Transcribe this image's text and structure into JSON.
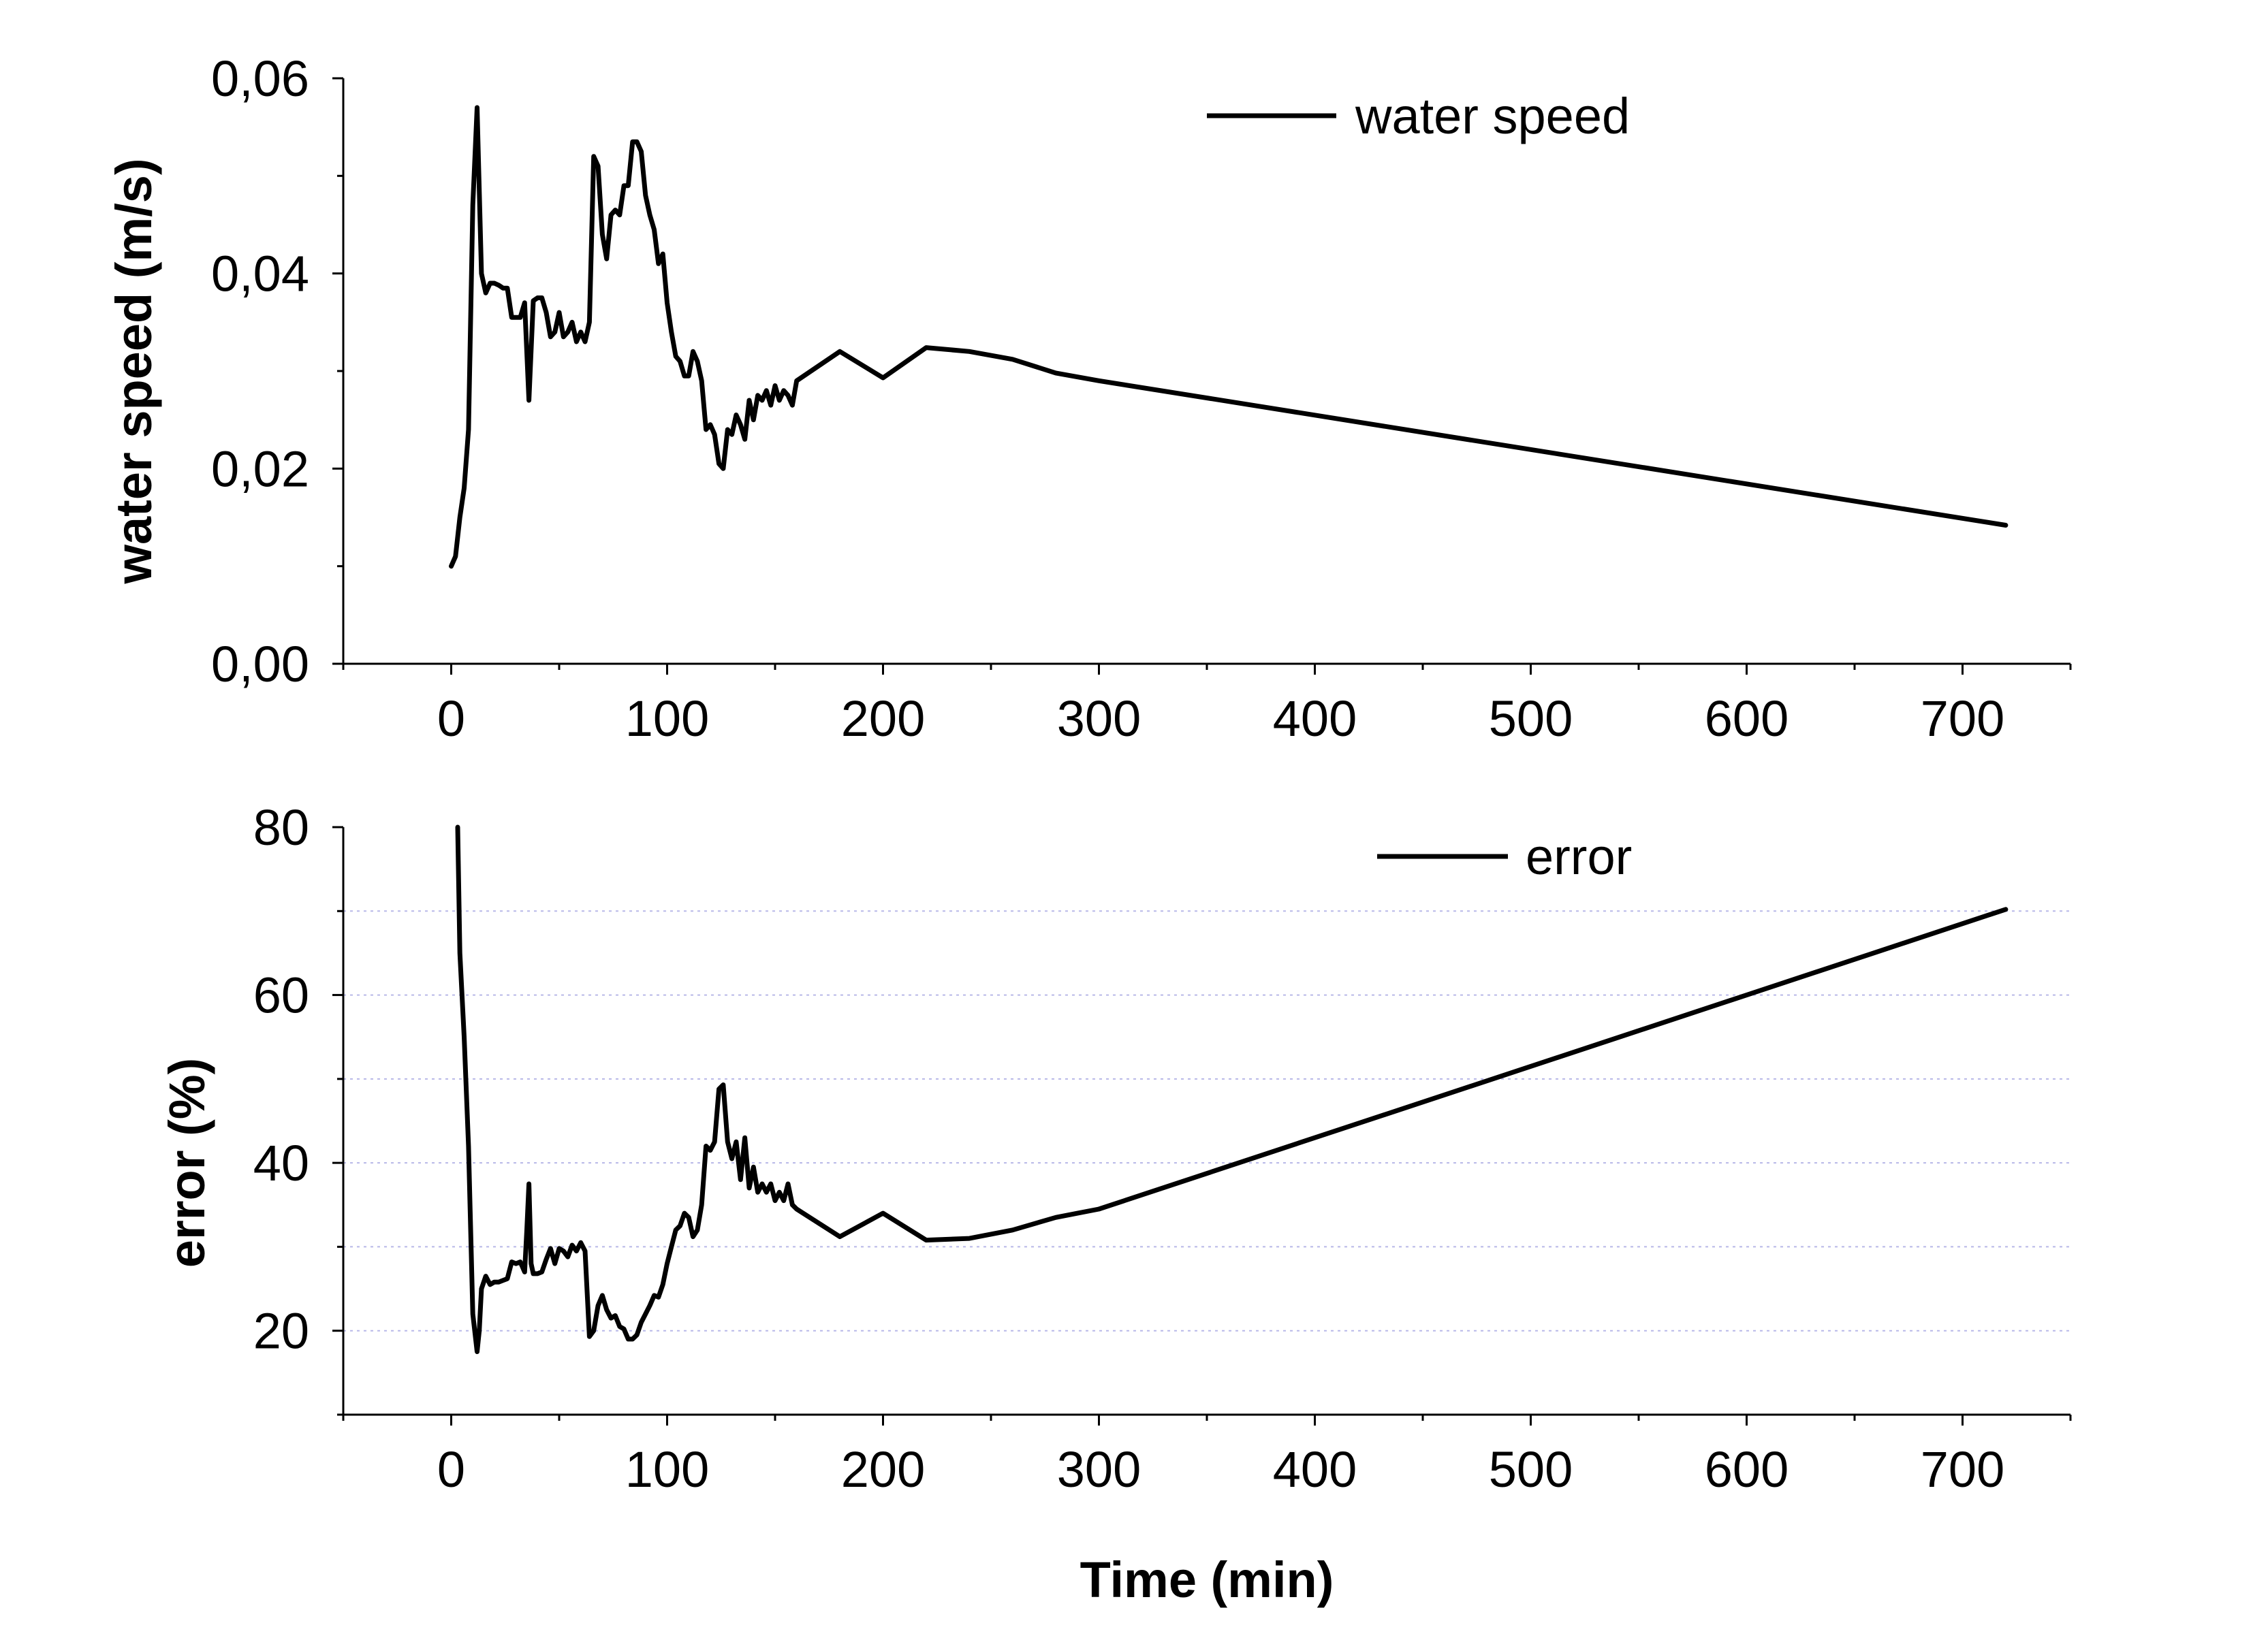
{
  "chart_data": [
    {
      "type": "line",
      "title": "",
      "xlabel": "",
      "ylabel": "water speed (m/s)",
      "xlim": [
        -50,
        750
      ],
      "ylim": [
        0,
        0.06
      ],
      "xticks": [
        0,
        100,
        200,
        300,
        400,
        500,
        600,
        700
      ],
      "xtick_labels": [
        "0",
        "100",
        "200",
        "300",
        "400",
        "500",
        "600",
        "700"
      ],
      "yticks": [
        0,
        0.02,
        0.04,
        0.06
      ],
      "ytick_labels": [
        "0,00",
        "0,02",
        "0,04",
        "0,06"
      ],
      "grid": false,
      "legend_position": "top-right",
      "series": [
        {
          "name": "water speed",
          "x": [
            0,
            2,
            4,
            6,
            8,
            10,
            12,
            14,
            16,
            18,
            20,
            22,
            24,
            26,
            28,
            30,
            32,
            34,
            36,
            38,
            40,
            42,
            44,
            46,
            48,
            50,
            52,
            54,
            56,
            58,
            60,
            62,
            64,
            66,
            68,
            70,
            72,
            74,
            76,
            78,
            80,
            82,
            84,
            86,
            88,
            90,
            92,
            94,
            96,
            98,
            100,
            102,
            104,
            106,
            108,
            110,
            112,
            114,
            116,
            118,
            120,
            122,
            124,
            126,
            128,
            130,
            132,
            134,
            136,
            138,
            140,
            142,
            144,
            146,
            148,
            150,
            152,
            154,
            156,
            158,
            160,
            180,
            200,
            220,
            240,
            260,
            280,
            300,
            720
          ],
          "values": [
            0.01,
            0.011,
            0.015,
            0.018,
            0.024,
            0.047,
            0.057,
            0.04,
            0.038,
            0.039,
            0.039,
            0.0388,
            0.0385,
            0.0385,
            0.0355,
            0.0355,
            0.0355,
            0.037,
            0.027,
            0.0372,
            0.0375,
            0.0375,
            0.036,
            0.0335,
            0.034,
            0.036,
            0.0335,
            0.034,
            0.035,
            0.033,
            0.034,
            0.033,
            0.035,
            0.052,
            0.051,
            0.044,
            0.0415,
            0.046,
            0.0465,
            0.046,
            0.049,
            0.049,
            0.0535,
            0.0535,
            0.0525,
            0.048,
            0.046,
            0.0445,
            0.041,
            0.042,
            0.037,
            0.034,
            0.0315,
            0.031,
            0.0295,
            0.0295,
            0.032,
            0.031,
            0.029,
            0.024,
            0.0245,
            0.0235,
            0.0205,
            0.02,
            0.024,
            0.0235,
            0.0255,
            0.0245,
            0.023,
            0.027,
            0.025,
            0.0275,
            0.027,
            0.028,
            0.0265,
            0.0285,
            0.027,
            0.028,
            0.0275,
            0.0265,
            0.029,
            0.032,
            0.0293,
            0.0324,
            0.032,
            0.0312,
            0.0298,
            0.029,
            0.0142
          ]
        }
      ]
    },
    {
      "type": "line",
      "title": "",
      "xlabel": "Time (min)",
      "ylabel": "error (%)",
      "xlim": [
        -50,
        750
      ],
      "ylim": [
        10,
        80
      ],
      "xticks": [
        0,
        100,
        200,
        300,
        400,
        500,
        600,
        700
      ],
      "xtick_labels": [
        "0",
        "100",
        "200",
        "300",
        "400",
        "500",
        "600",
        "700"
      ],
      "yticks": [
        20,
        40,
        60,
        80
      ],
      "ytick_labels": [
        "20",
        "40",
        "60",
        "80"
      ],
      "gridlines_y": [
        20,
        30,
        40,
        50,
        60,
        70
      ],
      "grid": true,
      "legend_position": "top-right",
      "series": [
        {
          "name": "error",
          "x": [
            3,
            4,
            6,
            8,
            10,
            12,
            13,
            14,
            16,
            18,
            20,
            22,
            24,
            26,
            28,
            30,
            32,
            34,
            35,
            36,
            37,
            38,
            40,
            42,
            44,
            46,
            48,
            50,
            52,
            54,
            56,
            58,
            60,
            62,
            64,
            66,
            68,
            70,
            72,
            74,
            76,
            78,
            80,
            82,
            84,
            86,
            88,
            90,
            92,
            94,
            96,
            98,
            100,
            102,
            104,
            106,
            108,
            110,
            112,
            114,
            116,
            118,
            120,
            122,
            124,
            126,
            128,
            130,
            132,
            134,
            136,
            138,
            140,
            142,
            144,
            146,
            148,
            150,
            152,
            154,
            156,
            158,
            160,
            180,
            200,
            220,
            240,
            260,
            280,
            300,
            720
          ],
          "values": [
            80,
            65,
            55,
            42,
            22,
            17.5,
            20,
            25,
            26.5,
            25.5,
            25.8,
            25.8,
            26,
            26.2,
            28.2,
            28,
            28.2,
            27,
            32,
            37.5,
            28,
            26.8,
            26.8,
            27,
            28.5,
            29.8,
            28,
            29.8,
            29.5,
            28.8,
            30.2,
            29.5,
            30.5,
            29.5,
            19.3,
            20,
            23,
            24.2,
            22.5,
            21.5,
            21.8,
            20.5,
            20.2,
            19,
            19,
            19.5,
            21,
            22,
            23,
            24.2,
            24,
            25.5,
            28,
            30,
            32,
            32.5,
            34,
            33.5,
            31.2,
            32,
            35,
            42,
            41.5,
            42.5,
            48.8,
            49.3,
            42.5,
            40.5,
            42.5,
            38,
            43,
            37,
            39.5,
            36.5,
            37.5,
            36.5,
            37.5,
            35.5,
            36.5,
            35.5,
            37.5,
            35,
            34.5,
            31.2,
            34,
            30.8,
            31,
            32,
            33.5,
            34.5,
            70.2
          ]
        }
      ]
    }
  ]
}
